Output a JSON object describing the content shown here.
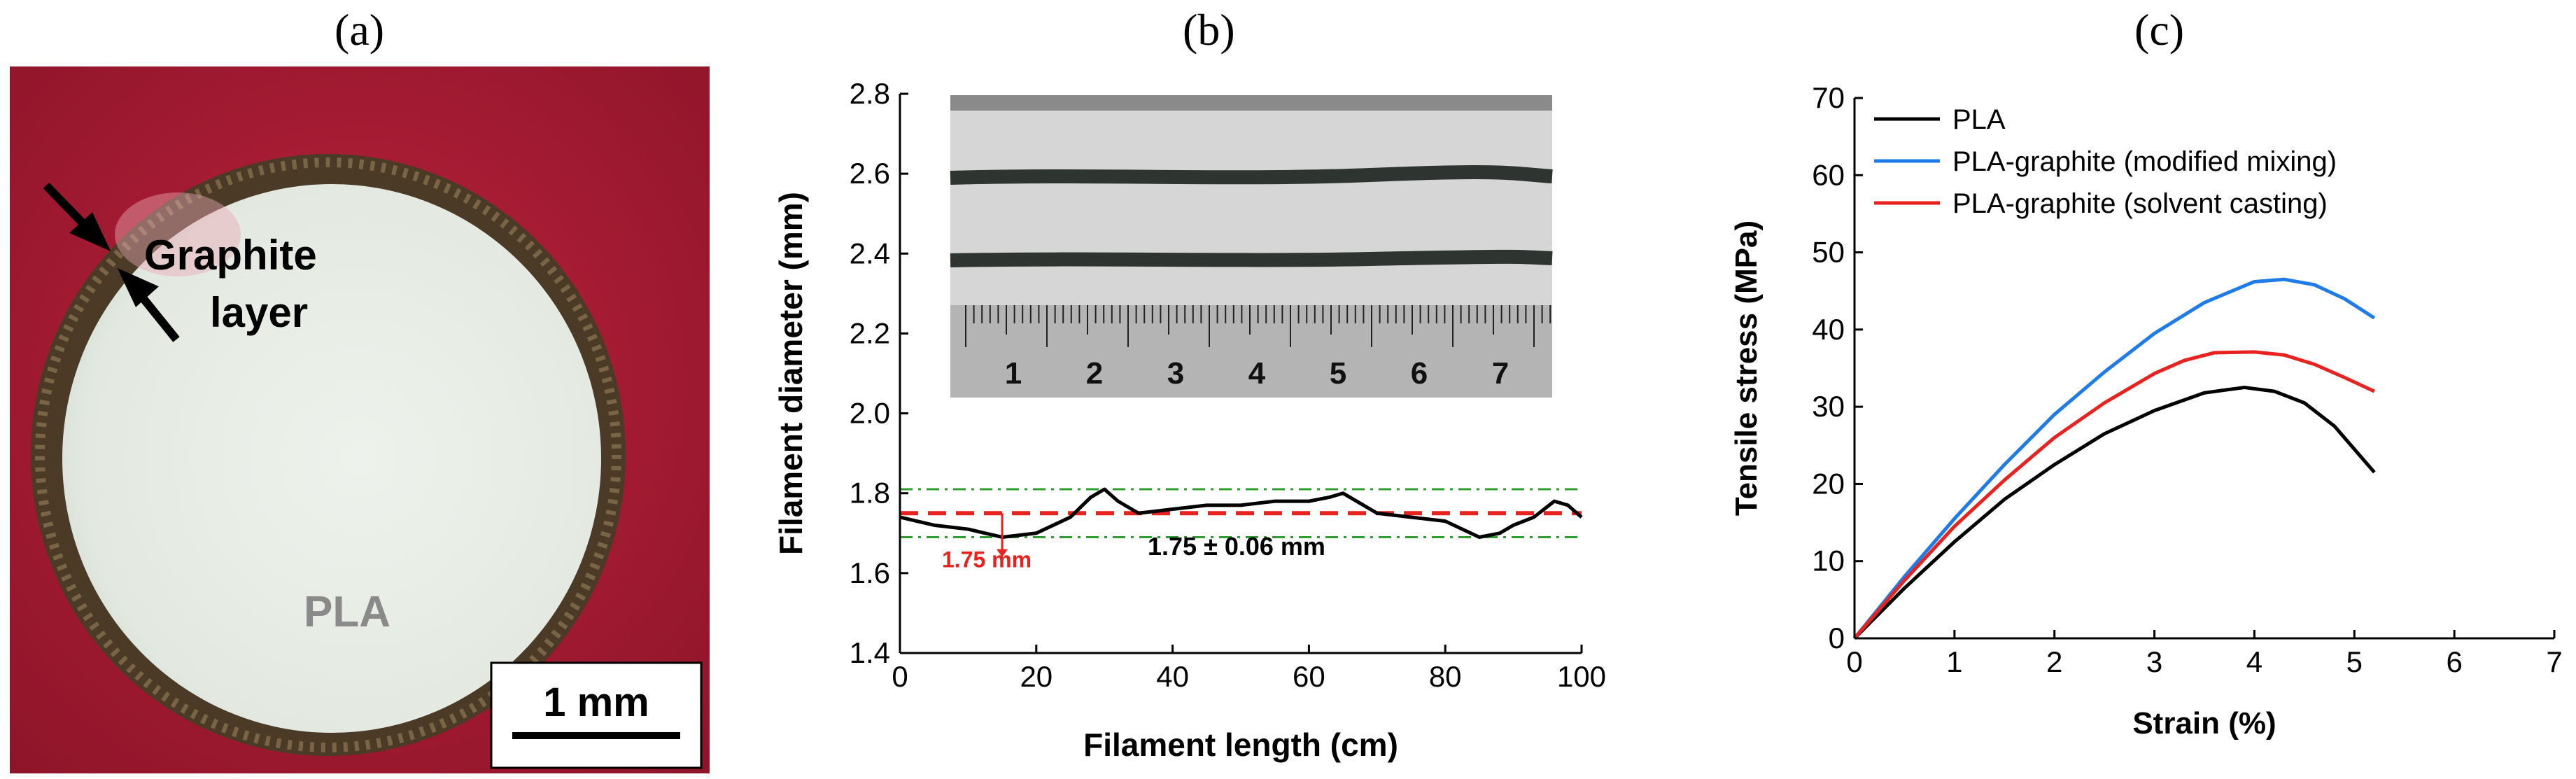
{
  "panels": {
    "a": {
      "letter": "(a)",
      "arrow_label_1": "Graphite",
      "arrow_label_2": "layer",
      "center_label": "PLA",
      "scale_bar_label": "1 mm",
      "colors": {
        "background": "#a31a32",
        "ring": "#4a3a26",
        "core": "#e8ede6"
      }
    },
    "b": {
      "letter": "(b)"
    },
    "c": {
      "letter": "(c)"
    }
  },
  "chart_data": [
    {
      "type": "line",
      "xlabel": "Filament length (cm)",
      "ylabel": "Filament diameter (mm)",
      "xlim": [
        0,
        100
      ],
      "ylim": [
        1.4,
        2.8
      ],
      "xticks": [
        0,
        20,
        40,
        60,
        80,
        100
      ],
      "yticks": [
        1.4,
        1.6,
        1.8,
        2.0,
        2.2,
        2.4,
        2.6,
        2.8
      ],
      "grid": false,
      "series": [
        {
          "color": "#000000",
          "x": [
            0,
            5,
            10,
            15,
            20,
            25,
            28,
            30,
            32,
            35,
            40,
            45,
            50,
            55,
            60,
            63,
            65,
            68,
            70,
            75,
            80,
            85,
            88,
            90,
            93,
            96,
            98,
            100
          ],
          "values": [
            1.74,
            1.72,
            1.71,
            1.69,
            1.7,
            1.74,
            1.79,
            1.81,
            1.78,
            1.75,
            1.76,
            1.77,
            1.77,
            1.78,
            1.78,
            1.79,
            1.8,
            1.77,
            1.75,
            1.74,
            1.73,
            1.69,
            1.7,
            1.72,
            1.74,
            1.78,
            1.77,
            1.74
          ]
        }
      ],
      "reference_lines": [
        {
          "y": 1.75,
          "color": "#e8231f",
          "style": "dashed"
        },
        {
          "y": 1.81,
          "color": "#2e9e2e",
          "style": "dash-dot"
        },
        {
          "y": 1.69,
          "color": "#2e9e2e",
          "style": "dash-dot"
        }
      ],
      "annotations": {
        "mean_label": "1.75 mm",
        "mean_label_color": "#e8231f",
        "range_label": "1.75 ± 0.06 mm",
        "inset_ruler_labels": [
          "1",
          "2",
          "3",
          "4",
          "5",
          "6",
          "7"
        ]
      }
    },
    {
      "type": "line",
      "xlabel": "Strain (%)",
      "ylabel": "Tensile stress (MPa)",
      "xlim": [
        0,
        7
      ],
      "ylim": [
        0,
        70
      ],
      "xticks": [
        0,
        1,
        2,
        3,
        4,
        5,
        6,
        7
      ],
      "yticks": [
        0,
        10,
        20,
        30,
        40,
        50,
        60,
        70
      ],
      "grid": false,
      "legend_placement": "top-left",
      "series": [
        {
          "name": "PLA",
          "color": "#000000",
          "x": [
            0,
            0.5,
            1,
            1.5,
            2,
            2.5,
            3,
            3.5,
            3.9,
            4.2,
            4.5,
            4.8,
            5.0,
            5.2
          ],
          "values": [
            0,
            6.5,
            12.5,
            18,
            22.5,
            26.5,
            29.5,
            31.8,
            32.5,
            32.0,
            30.5,
            27.5,
            24.5,
            21.5
          ]
        },
        {
          "name": "PLA-graphite (modified mixing)",
          "color": "#1f7be8",
          "x": [
            0,
            0.5,
            1,
            1.5,
            2,
            2.5,
            3,
            3.5,
            4.0,
            4.3,
            4.6,
            4.9,
            5.2
          ],
          "values": [
            0,
            8,
            15.5,
            22.5,
            29,
            34.5,
            39.5,
            43.5,
            46.2,
            46.5,
            45.8,
            44,
            41.5
          ]
        },
        {
          "name": "PLA-graphite (solvent casting)",
          "color": "#e8231f",
          "x": [
            0,
            0.5,
            1,
            1.5,
            2,
            2.5,
            3,
            3.3,
            3.6,
            4.0,
            4.3,
            4.6,
            4.9,
            5.2
          ],
          "values": [
            0,
            7.5,
            14.5,
            20.5,
            26,
            30.5,
            34.3,
            36.0,
            37.0,
            37.1,
            36.7,
            35.5,
            33.8,
            32.0
          ]
        }
      ]
    }
  ]
}
